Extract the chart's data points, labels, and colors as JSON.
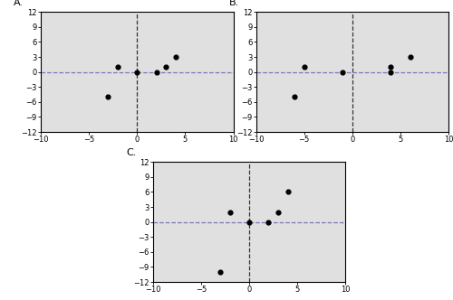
{
  "panel_A": {
    "label": "A.",
    "x": [
      -3,
      -2,
      0,
      2,
      3,
      4
    ],
    "y": [
      -5,
      1,
      0,
      0,
      1,
      3
    ],
    "xlim": [
      -10,
      10
    ],
    "ylim": [
      -12,
      12
    ],
    "xticks": [
      -10,
      -5,
      0,
      5,
      10
    ],
    "yticks": [
      -12,
      -9,
      -6,
      -3,
      0,
      3,
      6,
      9,
      12
    ]
  },
  "panel_B": {
    "label": "B.",
    "x": [
      -6,
      -5,
      -1,
      4,
      4,
      6
    ],
    "y": [
      -5,
      1,
      0,
      0,
      1,
      3
    ],
    "xlim": [
      -10,
      10
    ],
    "ylim": [
      -12,
      12
    ],
    "xticks": [
      -10,
      -5,
      0,
      5,
      10
    ],
    "yticks": [
      -12,
      -9,
      -6,
      -3,
      0,
      3,
      6,
      9,
      12
    ]
  },
  "panel_C": {
    "label": "C.",
    "x": [
      -3,
      -2,
      0,
      2,
      3,
      4
    ],
    "y": [
      -10,
      2,
      0,
      0,
      2,
      6
    ],
    "xlim": [
      -10,
      10
    ],
    "ylim": [
      -12,
      12
    ],
    "xticks": [
      -10,
      -5,
      0,
      5,
      10
    ],
    "yticks": [
      -12,
      -9,
      -6,
      -3,
      0,
      3,
      6,
      9,
      12
    ]
  },
  "bg_color": "#e0e0e0",
  "outer_bg": "#ffffff",
  "point_color": "black",
  "point_size": 12,
  "hline_color": "#7777bb",
  "hline_style": "--",
  "vline_color": "#333333",
  "vline_style": "--",
  "tick_fontsize": 6,
  "label_fontsize": 8,
  "hline_lw": 0.9,
  "vline_lw": 0.9
}
